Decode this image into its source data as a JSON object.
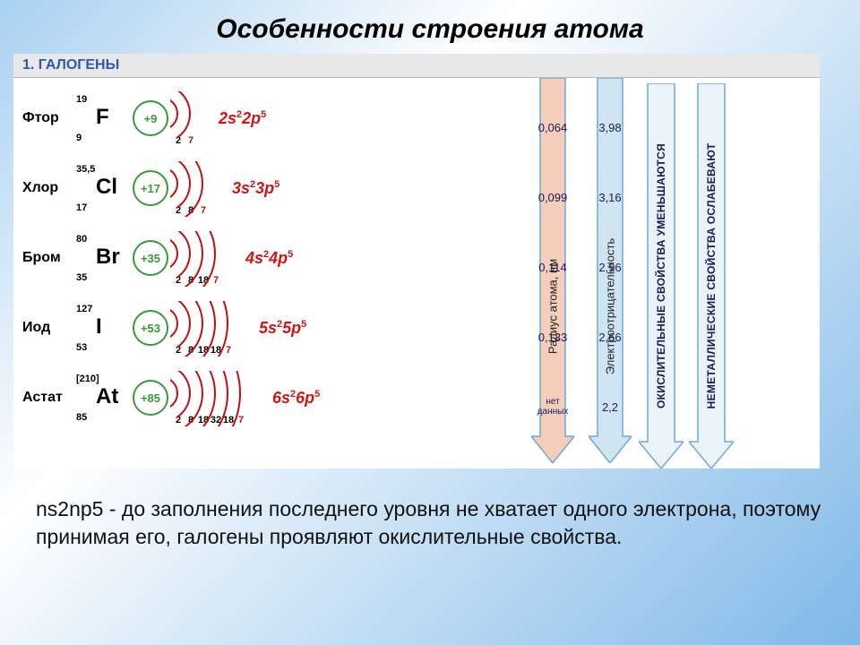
{
  "title": "Особенности строения атома",
  "section_header": "1. ГАЛОГЕНЫ",
  "colors": {
    "nucleus_border": "#3a9a3a",
    "nucleus_text": "#3a9a3a",
    "econf": "#d01515",
    "header_text": "#2e5aa8",
    "header_bg": "#e8e8e8",
    "shell_stroke": "#c01010",
    "shell_num": "#000000",
    "shell_last_num": "#c01010",
    "table_text": "#000000",
    "value_text": "#1a1a5a"
  },
  "typography": {
    "title_fontsize": 30,
    "name_fontsize": 16,
    "symbol_fontsize": 24,
    "econf_fontsize": 18,
    "section_fontsize": 16,
    "value_fontsize": 13,
    "bottom_fontsize": 23
  },
  "elements": [
    {
      "name": "Фтор",
      "mass": "19",
      "z": "9",
      "symbol": "F",
      "charge": "+9",
      "shells": [
        2,
        7
      ],
      "econf_pre": "2s",
      "econf_s": "2",
      "econf_p": "2p",
      "econf_pp": "5",
      "radius": "0,064",
      "en": "3,98"
    },
    {
      "name": "Хлор",
      "mass": "35,5",
      "z": "17",
      "symbol": "Cl",
      "charge": "+17",
      "shells": [
        2,
        8,
        7
      ],
      "econf_pre": "3s",
      "econf_s": "2",
      "econf_p": "3p",
      "econf_pp": "5",
      "radius": "0,099",
      "en": "3,16"
    },
    {
      "name": "Бром",
      "mass": "80",
      "z": "35",
      "symbol": "Br",
      "charge": "+35",
      "shells": [
        2,
        8,
        18,
        7
      ],
      "econf_pre": "4s",
      "econf_s": "2",
      "econf_p": "4p",
      "econf_pp": "5",
      "radius": "0,114",
      "en": "2,96"
    },
    {
      "name": "Иод",
      "mass": "127",
      "z": "53",
      "symbol": "I",
      "charge": "+53",
      "shells": [
        2,
        8,
        18,
        18,
        7
      ],
      "econf_pre": "5s",
      "econf_s": "2",
      "econf_p": "5p",
      "econf_pp": "5",
      "radius": "0,133",
      "en": "2,66"
    },
    {
      "name": "Астат",
      "mass": "[210]",
      "z": "85",
      "symbol": "At",
      "charge": "+85",
      "shells": [
        2,
        8,
        18,
        32,
        18,
        7
      ],
      "econf_pre": "6s",
      "econf_s": "2",
      "econf_p": "6p",
      "econf_pp": "5",
      "radius": "нет данных",
      "en": "2,2"
    }
  ],
  "arrows": {
    "radius": {
      "label": "Радиус атома, нм",
      "fill": "#f4cdbb",
      "stroke": "#6fa8d8"
    },
    "en": {
      "label": "Электроотрицательность",
      "fill": "#cfe6f2",
      "stroke": "#6fa8d8"
    },
    "oxid": {
      "label": "ОКИСЛИТЕЛЬНЫЕ СВОЙСТВА УМЕНЬШАЮТСЯ",
      "fill": "#e9f3f8",
      "stroke": "#6fa8d8"
    },
    "nonmetal": {
      "label": "НЕМЕТАЛЛИЧЕСКИЕ СВОЙСТВА ОСЛАБЕВАЮТ",
      "fill": "#e9f3f8",
      "stroke": "#6fa8d8"
    }
  },
  "footer": "ns2np5  - до заполнения последнего уровня не хватает одного электрона, поэтому принимая его, галогены проявляют окислительные свойства."
}
